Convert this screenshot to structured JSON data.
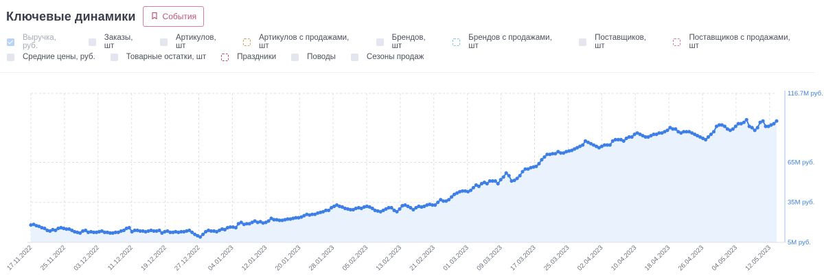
{
  "header": {
    "title": "Ключевые динамики",
    "events_label": "События"
  },
  "legend": {
    "row1": [
      {
        "label": "Выручка, руб.",
        "style": "checked",
        "color": "#b9d3f5",
        "disabled": true
      },
      {
        "label": "Заказы, шт",
        "style": "filled",
        "color": "#e3e6ef"
      },
      {
        "label": "Артикулов, шт",
        "style": "filled",
        "color": "#e3e6ef"
      },
      {
        "label": "Артикулов с продажами, шт",
        "style": "dashed",
        "color": "#d4a05a"
      },
      {
        "label": "Брендов, шт",
        "style": "filled",
        "color": "#e3e6ef"
      },
      {
        "label": "Брендов с продажами, шт",
        "style": "dashed",
        "color": "#6fd0e0"
      },
      {
        "label": "Поставщиков, шт",
        "style": "filled",
        "color": "#e3e6ef"
      },
      {
        "label": "Поставщиков с продажами, шт",
        "style": "dashed",
        "color": "#e07a99"
      }
    ],
    "row2": [
      {
        "label": "Средние цены,  руб.",
        "style": "filled",
        "color": "#e3e6ef"
      },
      {
        "label": "Товарные остатки, шт",
        "style": "filled",
        "color": "#e3e6ef"
      },
      {
        "label": "Праздники",
        "style": "dashed",
        "color": "#c0506a"
      },
      {
        "label": "Поводы",
        "style": "filled",
        "color": "#e3e6ef"
      },
      {
        "label": "Сезоны продаж",
        "style": "filled",
        "color": "#e3e6ef"
      }
    ]
  },
  "chart_data": {
    "type": "area",
    "series": [
      {
        "values": [
          18,
          18.5,
          17.5,
          17,
          16,
          15.5,
          14,
          13.5,
          14.5,
          14,
          15.5,
          16,
          15.5,
          15,
          15,
          14,
          13,
          12.5,
          12,
          13.5,
          14,
          12.5,
          13,
          12.5,
          12.5,
          13,
          13.5,
          12.5,
          12.5,
          12,
          12,
          12.5,
          12.5,
          13.5,
          14,
          15.5,
          16,
          13,
          14,
          14,
          13.5,
          13.5,
          13,
          13.5,
          14,
          13.5,
          13.5,
          14,
          12,
          13,
          13.5,
          12.5,
          12.5,
          13,
          12.5,
          13,
          13,
          13.5,
          14,
          12.5,
          11,
          10,
          9,
          11,
          13,
          14,
          13.5,
          13.5,
          13,
          14,
          15,
          14.5,
          16,
          16.5,
          16.5,
          16,
          19,
          20,
          18.5,
          19,
          19,
          20,
          21,
          20,
          20.5,
          19.5,
          20,
          21,
          23,
          22,
          22,
          21.5,
          21.5,
          22,
          22.5,
          22.5,
          23,
          23.5,
          23.5,
          24,
          25,
          26,
          25.5,
          26,
          26,
          27,
          27.5,
          28,
          29,
          29,
          31,
          32,
          33,
          32,
          31.5,
          30.5,
          30,
          29.5,
          29.5,
          30.5,
          31,
          30.5,
          31.5,
          32,
          31.5,
          30.5,
          29,
          28.5,
          28,
          29,
          30,
          31,
          31,
          29,
          28,
          30,
          32.5,
          33,
          32,
          31,
          29.5,
          31,
          32,
          31.5,
          32,
          33,
          33.5,
          33,
          33,
          35,
          37,
          36,
          36,
          37,
          39,
          41,
          42,
          43,
          43.5,
          43.5,
          43,
          44,
          46,
          48,
          47,
          49,
          50,
          49,
          51,
          51,
          51,
          49,
          52,
          54,
          57,
          55,
          51,
          51.5,
          53,
          55,
          58,
          60,
          60,
          61,
          61.5,
          62,
          64,
          67,
          69,
          71,
          71,
          71.5,
          71.5,
          73,
          72,
          72,
          73,
          73.5,
          74,
          75,
          76,
          77,
          78,
          81,
          80,
          79,
          78,
          77,
          76,
          77,
          78,
          78,
          78,
          81,
          82,
          82,
          82,
          81,
          83,
          84,
          84,
          86,
          87,
          86,
          85,
          84,
          84,
          85,
          86,
          86,
          87,
          87,
          88,
          89,
          91,
          90,
          90,
          88,
          87,
          88,
          88,
          88,
          87,
          86,
          85,
          84,
          83,
          82,
          84,
          86,
          88,
          92,
          93,
          93,
          92,
          90,
          89,
          90,
          92,
          94,
          94,
          95,
          97,
          92,
          91,
          89,
          91,
          95,
          96,
          92,
          92,
          93,
          94,
          96
        ]
      }
    ],
    "x_tick_labels": [
      "17.11.2022",
      "25.11.2022",
      "03.12.2022",
      "11.12.2022",
      "19.12.2022",
      "27.12.2022",
      "04.01.2023",
      "12.01.2023",
      "20.01.2023",
      "28.01.2023",
      "05.02.2023",
      "13.02.2023",
      "21.02.2023",
      "01.03.2023",
      "09.03.2023",
      "17.03.2023",
      "25.03.2023",
      "02.04.2023",
      "10.04.2023",
      "18.04.2023",
      "26.04.2023",
      "04.05.2023",
      "12.05.2023"
    ],
    "y_tick_labels": [
      "116.7М руб.",
      "65М руб.",
      "35М руб.",
      "5М руб."
    ],
    "y_ticks": [
      116.7,
      65,
      35,
      5
    ],
    "ylim": [
      5,
      116.7
    ],
    "colors": {
      "line": "#3d7fe6",
      "fill": "#eaf2fd",
      "grid": "#dcdfe5"
    }
  }
}
